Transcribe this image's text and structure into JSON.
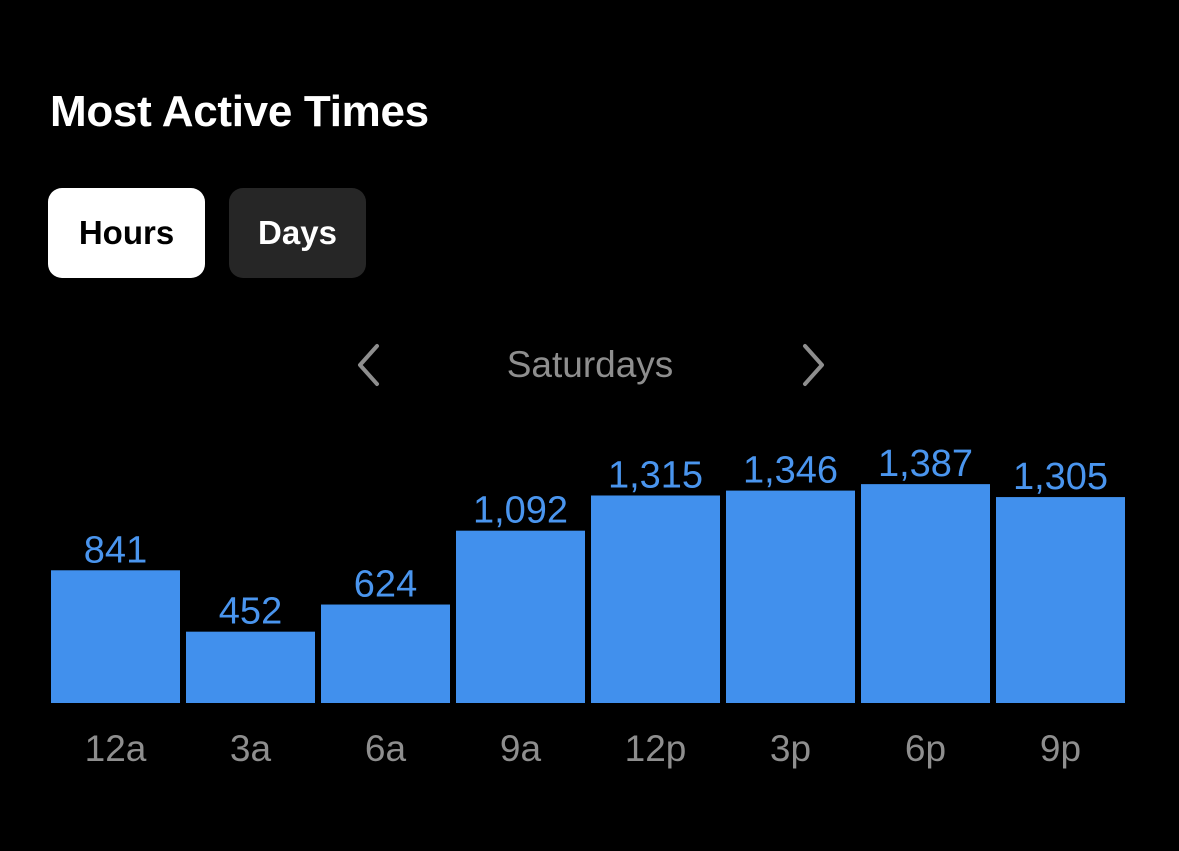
{
  "header": {
    "title": "Most Active Times"
  },
  "tabs": [
    {
      "label": "Hours",
      "selected": true
    },
    {
      "label": "Days",
      "selected": false
    }
  ],
  "period_nav": {
    "label": "Saturdays",
    "prev_icon": "chevron-left-icon",
    "next_icon": "chevron-right-icon"
  },
  "colors": {
    "background": "#000000",
    "bar": "#4190ED",
    "value_label": "#4A95EE",
    "axis_label": "#8E8E8E",
    "tab_selected_bg": "#FFFFFF",
    "tab_unselected_bg": "#262626"
  },
  "chart_data": {
    "type": "bar",
    "categories": [
      "12a",
      "3a",
      "6a",
      "9a",
      "12p",
      "3p",
      "6p",
      "9p"
    ],
    "values": [
      841,
      452,
      624,
      1092,
      1315,
      1346,
      1387,
      1305
    ],
    "value_labels": [
      "841",
      "452",
      "624",
      "1,092",
      "1,315",
      "1,346",
      "1,387",
      "1,305"
    ],
    "grid": false,
    "legend": "none"
  }
}
